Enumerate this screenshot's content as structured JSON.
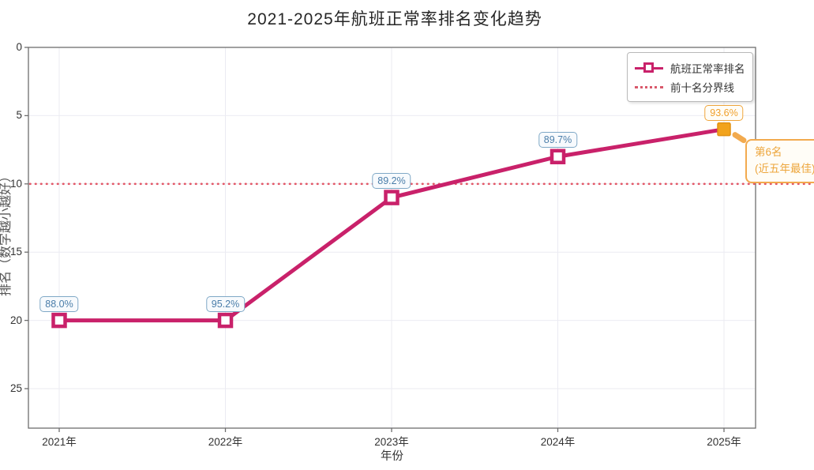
{
  "chart_data": {
    "type": "line",
    "title": "2021-2025年航班正常率排名变化趋势",
    "xlabel": "年份",
    "ylabel": "排名（数字越小越好）",
    "categories": [
      "2021年",
      "2022年",
      "2023年",
      "2024年",
      "2025年"
    ],
    "series": [
      {
        "name": "航班正常率排名",
        "values": [
          20,
          20,
          11,
          8,
          6
        ],
        "point_labels": [
          "88.0%",
          "95.2%",
          "89.2%",
          "89.7%",
          "93.6%"
        ]
      }
    ],
    "reference_line": {
      "label": "前十名分界线",
      "value": 10,
      "style": "dotted"
    },
    "annotation": {
      "lines": [
        "第6名",
        "(近五年最佳)"
      ],
      "attached_to": "2025年"
    },
    "yticks": [
      0,
      5,
      10,
      15,
      20,
      25
    ],
    "ylim": [
      0,
      28
    ],
    "y_axis_inverted": true,
    "grid": true,
    "legend_position": "upper-right",
    "highlight_last_point": true,
    "colors": {
      "line": "#C9216A",
      "marker_fill": "#FFFFFF",
      "highlight_marker": "#F2A31C",
      "highlight_marker_edge": "#E19112",
      "reference_line": "#E25767",
      "point_label_text": "#4A7DA9",
      "point_label_border": "#7FA8C6",
      "highlight_label_text": "#F0A02C",
      "annotation_text": "#EDA63D",
      "annotation_border": "#F2AA4E",
      "grid_color": "#EBEBF2",
      "spine_color": "#6E6E6E"
    }
  }
}
